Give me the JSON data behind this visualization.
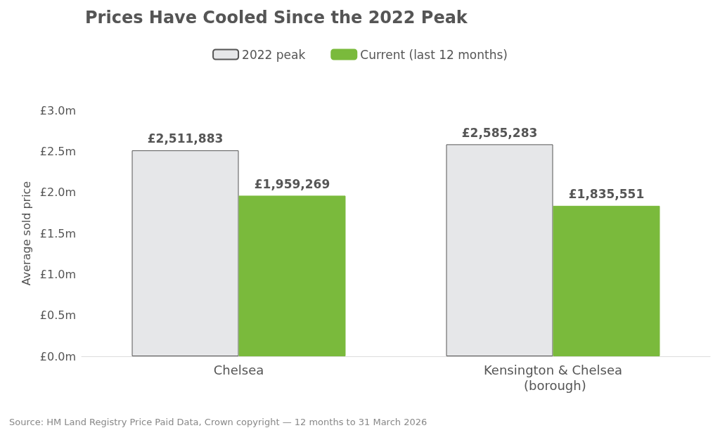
{
  "chart_data": {
    "type": "bar",
    "title": "Prices Have Cooled Since the 2022 Peak",
    "ylabel": "Average sold price",
    "categories": [
      "Chelsea",
      "Kensington & Chelsea (borough)"
    ],
    "series": [
      {
        "name": "2022 peak",
        "color": "#e6e7e9",
        "values": [
          2511883,
          2585283
        ],
        "value_labels": [
          "£2,511,883",
          "£2,585,283"
        ]
      },
      {
        "name": "Current (last 12 months)",
        "color": "#7aba3c",
        "values": [
          1959269,
          1835551
        ],
        "value_labels": [
          "£1,959,269",
          "£1,835,551"
        ]
      }
    ],
    "ylim": [
      0,
      3000000
    ],
    "yticks": [
      {
        "value": 0,
        "label": "£0.0m"
      },
      {
        "value": 500000,
        "label": "£0.5m"
      },
      {
        "value": 1000000,
        "label": "£1.0m"
      },
      {
        "value": 1500000,
        "label": "£1.5m"
      },
      {
        "value": 2000000,
        "label": "£2.0m"
      },
      {
        "value": 2500000,
        "label": "£2.5m"
      },
      {
        "value": 3000000,
        "label": "£3.0m"
      }
    ],
    "grid": false,
    "legend": "top",
    "annotations": [
      "Source: HM Land Registry Price Paid Data, Crown copyright — 12 months to 31 March 2026"
    ]
  }
}
